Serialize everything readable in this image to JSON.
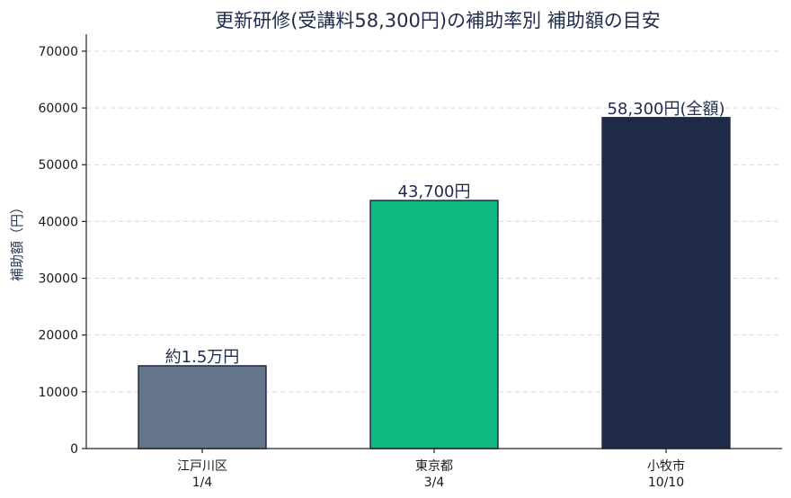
{
  "chart_data": {
    "type": "bar",
    "title": "更新研修(受講料58,300円)の補助率別 補助額の目安",
    "ylabel": "補助額（円）",
    "xlabel": "",
    "ylim": [
      0,
      73000
    ],
    "yticks": [
      0,
      10000,
      20000,
      30000,
      40000,
      50000,
      60000,
      70000
    ],
    "grid": true,
    "categories": [
      {
        "name": "江戸川区",
        "sub": "1/4"
      },
      {
        "name": "東京都",
        "sub": "3/4"
      },
      {
        "name": "小牧市",
        "sub": "10/10"
      }
    ],
    "values": [
      14575,
      43700,
      58300
    ],
    "data_labels": [
      "約1.5万円",
      "43,700円",
      "58,300円(全額)"
    ],
    "colors": [
      "#64748b",
      "#10b981",
      "#1e2a47"
    ],
    "edge_color": "#1e2a47"
  }
}
